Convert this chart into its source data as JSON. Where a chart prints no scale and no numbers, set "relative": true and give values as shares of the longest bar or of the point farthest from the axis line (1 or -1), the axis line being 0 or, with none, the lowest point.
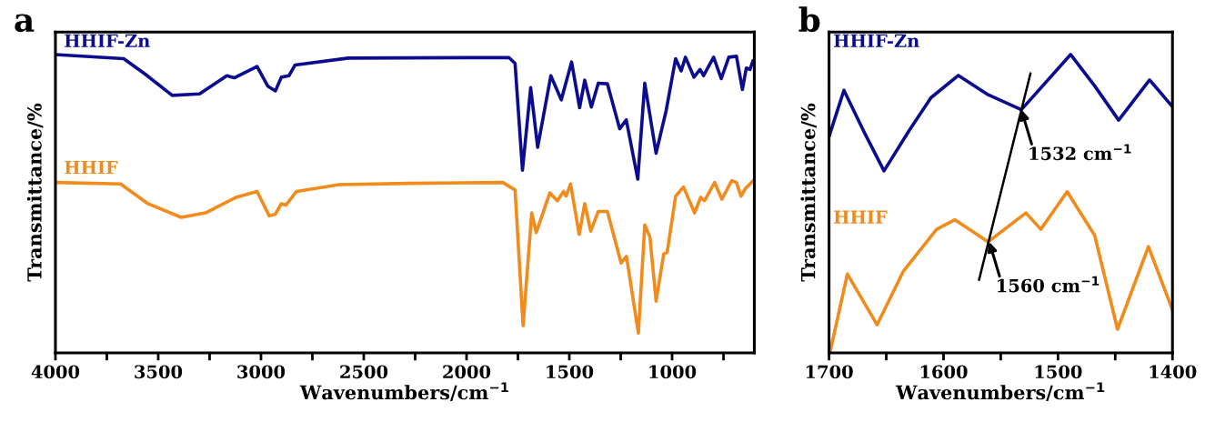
{
  "chart_data": [
    {
      "type": "line",
      "title": "a",
      "xlabel": "Wavenumbers/cm$^{−1}$",
      "ylabel": "Transmittance/%",
      "relative": true,
      "tick_labels": "x",
      "legend": false,
      "grid": false,
      "xlim": [
        4000,
        600
      ],
      "xticks": [
        4000,
        {
          "value": 3750,
          "label": null
        },
        3500,
        {
          "value": 3250,
          "label": null
        },
        3000,
        {
          "value": 2750,
          "label": null
        },
        2500,
        {
          "value": 2250,
          "label": null
        },
        2000,
        {
          "value": 1750,
          "label": null
        },
        1500,
        {
          "value": 1250,
          "label": null
        },
        1000,
        {
          "value": 750,
          "label": null
        }
      ],
      "series": [
        {
          "name": "HHIF-Zn",
          "color": "#0b0c8e",
          "x": [
            4000,
            3668,
            3565,
            3432,
            3299,
            3166,
            3130,
            3019,
            2967,
            2930,
            2901,
            2864,
            2834,
            2576,
            1794,
            1764,
            1728,
            1688,
            1654,
            1590,
            1539,
            1489,
            1450,
            1425,
            1393,
            1359,
            1315,
            1255,
            1223,
            1167,
            1133,
            1078,
            1029,
            983,
            956,
            935,
            894,
            864,
            847,
            798,
            761,
            724,
            687,
            658,
            639,
            621,
            606
          ],
          "values": [
            1.0,
            0.986,
            0.935,
            0.863,
            0.868,
            0.929,
            0.922,
            0.96,
            0.894,
            0.878,
            0.924,
            0.929,
            0.965,
            0.988,
            0.99,
            0.97,
            0.612,
            0.889,
            0.689,
            0.929,
            0.848,
            0.975,
            0.822,
            0.914,
            0.824,
            0.904,
            0.902,
            0.751,
            0.781,
            0.582,
            0.904,
            0.669,
            0.812,
            0.986,
            0.945,
            0.991,
            0.924,
            0.95,
            0.929,
            0.991,
            0.919,
            0.991,
            0.994,
            0.883,
            0.955,
            0.95,
            0.98
          ]
        },
        {
          "name": "HHIF",
          "color": "#f18b1c",
          "x": [
            4000,
            3683,
            3550,
            3388,
            3270,
            3122,
            3019,
            2960,
            2930,
            2901,
            2879,
            2827,
            2620,
            2281,
            1824,
            1764,
            1725,
            1683,
            1661,
            1595,
            1558,
            1528,
            1516,
            1494,
            1452,
            1425,
            1396,
            1359,
            1315,
            1248,
            1222,
            1164,
            1133,
            1108,
            1078,
            1041,
            1024,
            983,
            945,
            916,
            891,
            861,
            842,
            793,
            758,
            710,
            687,
            665,
            643,
            606
          ],
          "values": [
            0.571,
            0.566,
            0.5,
            0.454,
            0.469,
            0.521,
            0.541,
            0.459,
            0.465,
            0.5,
            0.495,
            0.541,
            0.564,
            0.568,
            0.571,
            0.546,
            0.091,
            0.469,
            0.403,
            0.536,
            0.51,
            0.541,
            0.525,
            0.566,
            0.397,
            0.5,
            0.408,
            0.474,
            0.474,
            0.301,
            0.323,
            0.066,
            0.429,
            0.388,
            0.173,
            0.331,
            0.337,
            0.525,
            0.556,
            0.51,
            0.469,
            0.521,
            0.51,
            0.571,
            0.515,
            0.577,
            0.571,
            0.525,
            0.551,
            0.577
          ]
        }
      ]
    },
    {
      "type": "line",
      "title": "b",
      "xlabel": "Wavenumbers/cm$^{−1}$",
      "ylabel": "Transmittance/%",
      "relative": true,
      "tick_labels": "x",
      "legend": false,
      "grid": false,
      "xlim": [
        1700,
        1400
      ],
      "xticks": [
        1700,
        {
          "value": 1650,
          "label": null
        },
        1600,
        {
          "value": 1550,
          "label": null
        },
        1500,
        {
          "value": 1450,
          "label": null
        },
        1400
      ],
      "annotations": [
        {
          "text": "1532 cm$^{−1}$",
          "x": 1532,
          "y": 0.815
        },
        {
          "text": "1560 cm$^{−1}$",
          "x": 1560,
          "y": 0.372
        }
      ],
      "series": [
        {
          "name": "HHIF-Zn",
          "color": "#0b0c8e",
          "x": [
            1700,
            1687,
            1670,
            1652,
            1630,
            1611,
            1587,
            1561,
            1532,
            1489,
            1468,
            1447,
            1420,
            1400
          ],
          "values": [
            0.725,
            0.88,
            0.745,
            0.61,
            0.745,
            0.855,
            0.93,
            0.865,
            0.815,
            1.0,
            0.895,
            0.78,
            0.915,
            0.825
          ]
        },
        {
          "name": "HHIF",
          "color": "#f18b1c",
          "x": [
            1699,
            1684,
            1658,
            1635,
            1606,
            1590,
            1561,
            1528,
            1515,
            1492,
            1468,
            1448,
            1421,
            1400
          ],
          "values": [
            0.004,
            0.264,
            0.094,
            0.274,
            0.414,
            0.446,
            0.372,
            0.469,
            0.414,
            0.54,
            0.394,
            0.079,
            0.356,
            0.144
          ]
        },
        {
          "type": "line",
          "color": "#000000",
          "x": [
            1569,
            1524
          ],
          "values": [
            0.244,
            0.937
          ]
        }
      ]
    }
  ]
}
